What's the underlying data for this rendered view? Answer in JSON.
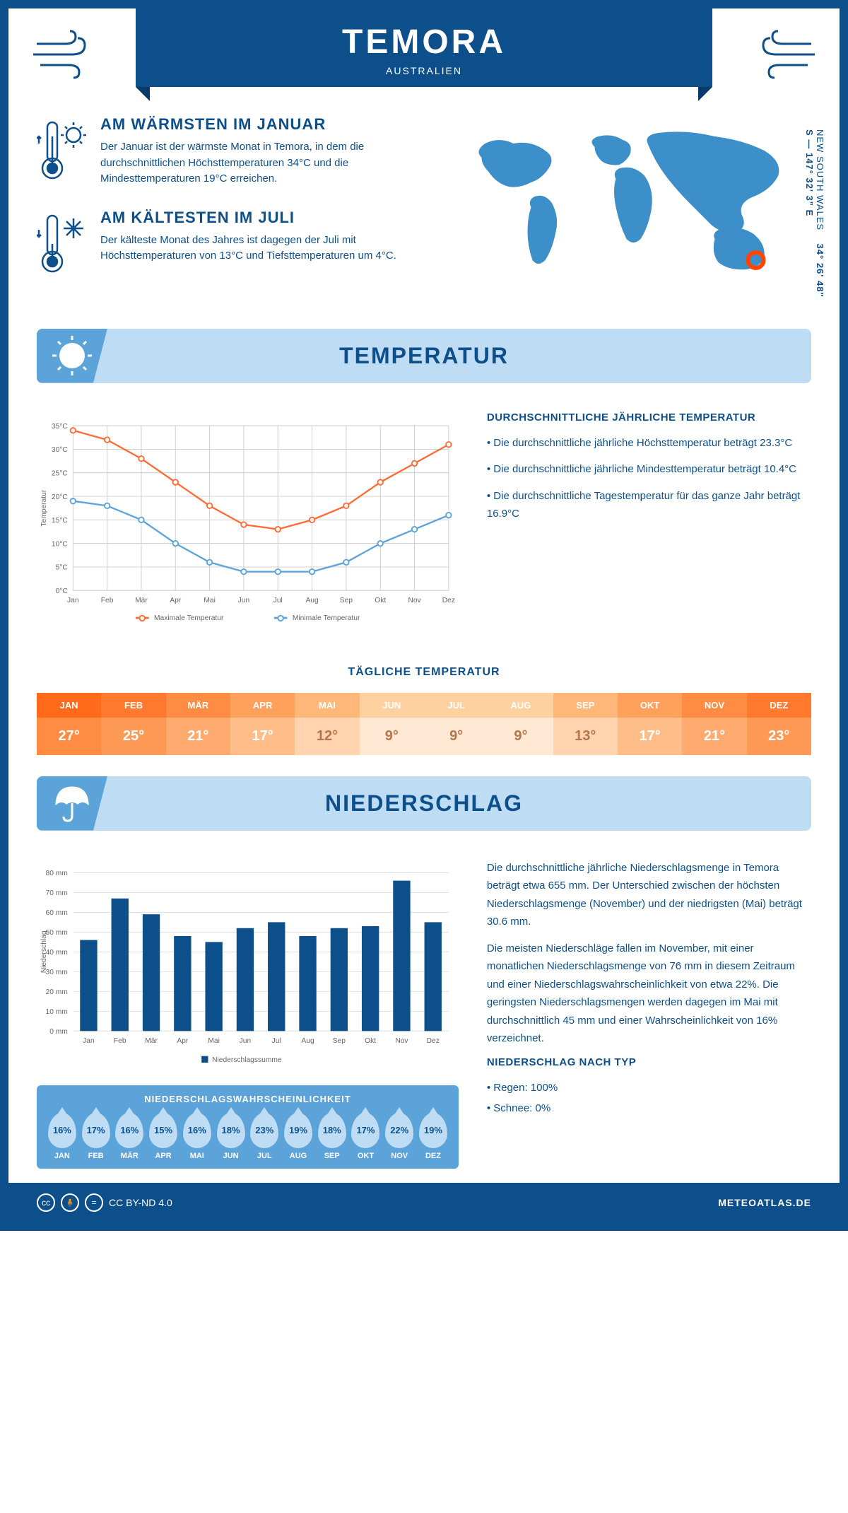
{
  "header": {
    "title": "TEMORA",
    "subtitle": "AUSTRALIEN"
  },
  "coords": {
    "lat": "34° 26' 48\" S — 147° 32' 3\" E",
    "region": "NEW SOUTH WALES"
  },
  "facts": {
    "warm": {
      "title": "AM WÄRMSTEN IM JANUAR",
      "text": "Der Januar ist der wärmste Monat in Temora, in dem die durchschnittlichen Höchsttemperaturen 34°C und die Mindesttemperaturen 19°C erreichen."
    },
    "cold": {
      "title": "AM KÄLTESTEN IM JULI",
      "text": "Der kälteste Monat des Jahres ist dagegen der Juli mit Höchsttemperaturen von 13°C und Tiefsttemperaturen um 4°C."
    }
  },
  "sections": {
    "temp": "TEMPERATUR",
    "precip": "NIEDERSCHLAG"
  },
  "months": [
    "Jan",
    "Feb",
    "Mär",
    "Apr",
    "Mai",
    "Jun",
    "Jul",
    "Aug",
    "Sep",
    "Okt",
    "Nov",
    "Dez"
  ],
  "months_upper": [
    "JAN",
    "FEB",
    "MÄR",
    "APR",
    "MAI",
    "JUN",
    "JUL",
    "AUG",
    "SEP",
    "OKT",
    "NOV",
    "DEZ"
  ],
  "temp_chart": {
    "ylabel": "Temperatur",
    "ymin": 0,
    "ymax": 35,
    "ystep": 5,
    "max_series": {
      "label": "Maximale Temperatur",
      "color": "#ff6b35",
      "values": [
        34,
        32,
        28,
        23,
        18,
        14,
        13,
        15,
        18,
        23,
        27,
        31
      ]
    },
    "min_series": {
      "label": "Minimale Temperatur",
      "color": "#5ba3d9",
      "values": [
        19,
        18,
        15,
        10,
        6,
        4,
        4,
        4,
        6,
        10,
        13,
        16
      ]
    }
  },
  "temp_info": {
    "title": "DURCHSCHNITTLICHE JÄHRLICHE TEMPERATUR",
    "b1": "• Die durchschnittliche jährliche Höchsttemperatur beträgt 23.3°C",
    "b2": "• Die durchschnittliche jährliche Mindesttemperatur beträgt 10.4°C",
    "b3": "• Die durchschnittliche Tagestemperatur für das ganze Jahr beträgt 16.9°C"
  },
  "daily_temp": {
    "title": "TÄGLICHE TEMPERATUR",
    "values": [
      "27°",
      "25°",
      "21°",
      "17°",
      "12°",
      "9°",
      "9°",
      "9°",
      "13°",
      "17°",
      "21°",
      "23°"
    ],
    "header_colors": [
      "#ff6b1a",
      "#ff7a2e",
      "#ff8c42",
      "#ffa05c",
      "#ffb87a",
      "#ffd0a0",
      "#ffd0a0",
      "#ffd0a0",
      "#ffb87a",
      "#ffa05c",
      "#ff8c42",
      "#ff7a2e"
    ],
    "cell_colors": [
      "#ff8c42",
      "#ff9a56",
      "#ffaa6e",
      "#ffbd8a",
      "#ffd4ae",
      "#ffe8d4",
      "#ffe8d4",
      "#ffe8d4",
      "#ffd4ae",
      "#ffbd8a",
      "#ffaa6e",
      "#ff9a56"
    ],
    "text_colors": [
      "#ffffff",
      "#ffffff",
      "#ffffff",
      "#ffffff",
      "#b8754a",
      "#b8754a",
      "#b8754a",
      "#b8754a",
      "#b8754a",
      "#ffffff",
      "#ffffff",
      "#ffffff"
    ]
  },
  "precip_chart": {
    "ylabel": "Niederschlag",
    "legend": "Niederschlagssumme",
    "ymin": 0,
    "ymax": 80,
    "ystep": 10,
    "color": "#0d4f8b",
    "values": [
      46,
      67,
      59,
      48,
      45,
      52,
      55,
      48,
      52,
      53,
      76,
      55
    ]
  },
  "precip_text": {
    "p1": "Die durchschnittliche jährliche Niederschlagsmenge in Temora beträgt etwa 655 mm. Der Unterschied zwischen der höchsten Niederschlagsmenge (November) und der niedrigsten (Mai) beträgt 30.6 mm.",
    "p2": "Die meisten Niederschläge fallen im November, mit einer monatlichen Niederschlagsmenge von 76 mm in diesem Zeitraum und einer Niederschlagswahrscheinlichkeit von etwa 22%. Die geringsten Niederschlagsmengen werden dagegen im Mai mit durchschnittlich 45 mm und einer Wahrscheinlichkeit von 16% verzeichnet.",
    "type_title": "NIEDERSCHLAG NACH TYP",
    "rain": "• Regen: 100%",
    "snow": "• Schnee: 0%"
  },
  "prob": {
    "title": "NIEDERSCHLAGSWAHRSCHEINLICHKEIT",
    "values": [
      "16%",
      "17%",
      "16%",
      "15%",
      "16%",
      "18%",
      "23%",
      "19%",
      "18%",
      "17%",
      "22%",
      "19%"
    ]
  },
  "footer": {
    "license": "CC BY-ND 4.0",
    "site": "METEOATLAS.DE"
  }
}
